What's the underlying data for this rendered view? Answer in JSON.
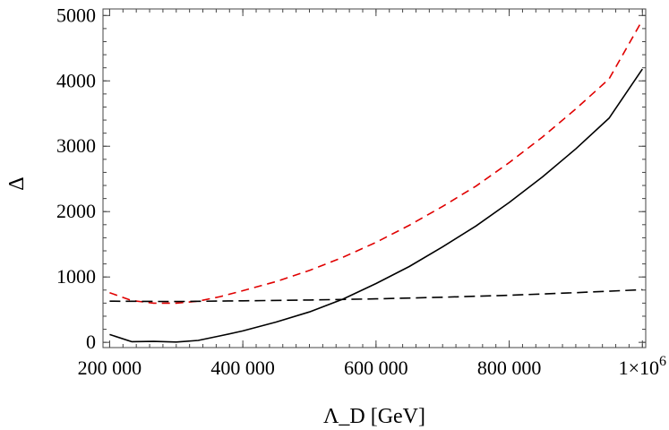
{
  "chart_data": {
    "type": "line",
    "title": "",
    "xlabel": "Λ_D [GeV]",
    "ylabel": "Δ",
    "xlim": [
      190000,
      1005000
    ],
    "ylim": [
      -80,
      5100
    ],
    "grid": false,
    "x_ticks": [
      {
        "value": 200000,
        "label": "200 000"
      },
      {
        "value": 400000,
        "label": "400 000"
      },
      {
        "value": 600000,
        "label": "600 000"
      },
      {
        "value": 800000,
        "label": "800 000"
      },
      {
        "value": 1000000,
        "label": "1×10",
        "exp": "6"
      }
    ],
    "y_ticks": [
      {
        "value": 0,
        "label": "0"
      },
      {
        "value": 1000,
        "label": "1000"
      },
      {
        "value": 2000,
        "label": "2000"
      },
      {
        "value": 3000,
        "label": "3000"
      },
      {
        "value": 4000,
        "label": "4000"
      },
      {
        "value": 5000,
        "label": "5000"
      }
    ],
    "x_minor_step": 20000,
    "y_minor_step": 200,
    "series": [
      {
        "name": "solid-black",
        "color": "#000000",
        "dash": "none",
        "x": [
          200000,
          233000,
          266000,
          300000,
          333000,
          366000,
          400000,
          450000,
          500000,
          550000,
          600000,
          650000,
          700000,
          750000,
          800000,
          850000,
          900000,
          950000,
          1000000
        ],
        "y": [
          120,
          10,
          15,
          5,
          30,
          100,
          175,
          310,
          465,
          660,
          900,
          1160,
          1460,
          1780,
          2140,
          2530,
          2960,
          3430,
          4180
        ]
      },
      {
        "name": "red-dashed",
        "color": "#e00000",
        "dash": "9,6",
        "x": [
          200000,
          233000,
          266000,
          300000,
          333000,
          366000,
          400000,
          450000,
          500000,
          550000,
          600000,
          650000,
          700000,
          750000,
          800000,
          850000,
          900000,
          950000,
          1000000
        ],
        "y": [
          760,
          640,
          600,
          600,
          630,
          700,
          790,
          930,
          1100,
          1300,
          1530,
          1790,
          2080,
          2390,
          2750,
          3140,
          3570,
          4030,
          4930
        ]
      },
      {
        "name": "black-dashed",
        "color": "#000000",
        "dash": "12,6",
        "x": [
          200000,
          300000,
          400000,
          500000,
          600000,
          700000,
          800000,
          900000,
          1000000
        ],
        "y": [
          630,
          625,
          635,
          648,
          665,
          690,
          720,
          760,
          805
        ]
      }
    ]
  }
}
